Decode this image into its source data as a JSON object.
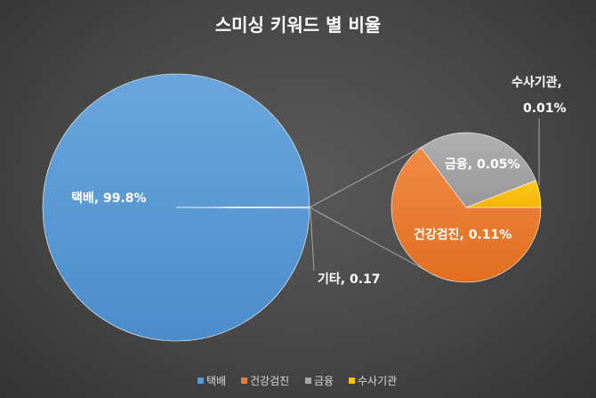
{
  "chart_data": {
    "type": "pie",
    "subtype": "pie-of-pie",
    "title": "스미싱 키워드 별 비율",
    "main_pie": {
      "slices": [
        {
          "name": "택배",
          "value": 99.8,
          "label": "택배, 99.8%",
          "color": "#5b9bd5"
        },
        {
          "name": "기타",
          "value": 0.17,
          "label": "기타, 0.17",
          "color": "#a5a5a5"
        }
      ]
    },
    "secondary_pie": {
      "slices": [
        {
          "name": "건강검진",
          "value": 0.11,
          "label": "건강검진, 0.11%",
          "color": "#ed7d31"
        },
        {
          "name": "금융",
          "value": 0.05,
          "label": "금융, 0.05%",
          "color": "#a5a5a5"
        },
        {
          "name": "수사기관",
          "value": 0.01,
          "label_line1": "수사기관,",
          "label_line2": "0.01%",
          "color": "#ffc000"
        }
      ]
    },
    "legend": {
      "position": "bottom",
      "items": [
        {
          "name": "택배",
          "color": "#5b9bd5"
        },
        {
          "name": "건강검진",
          "color": "#ed7d31"
        },
        {
          "name": "금융",
          "color": "#a5a5a5"
        },
        {
          "name": "수사기관",
          "color": "#ffc000"
        }
      ]
    }
  }
}
